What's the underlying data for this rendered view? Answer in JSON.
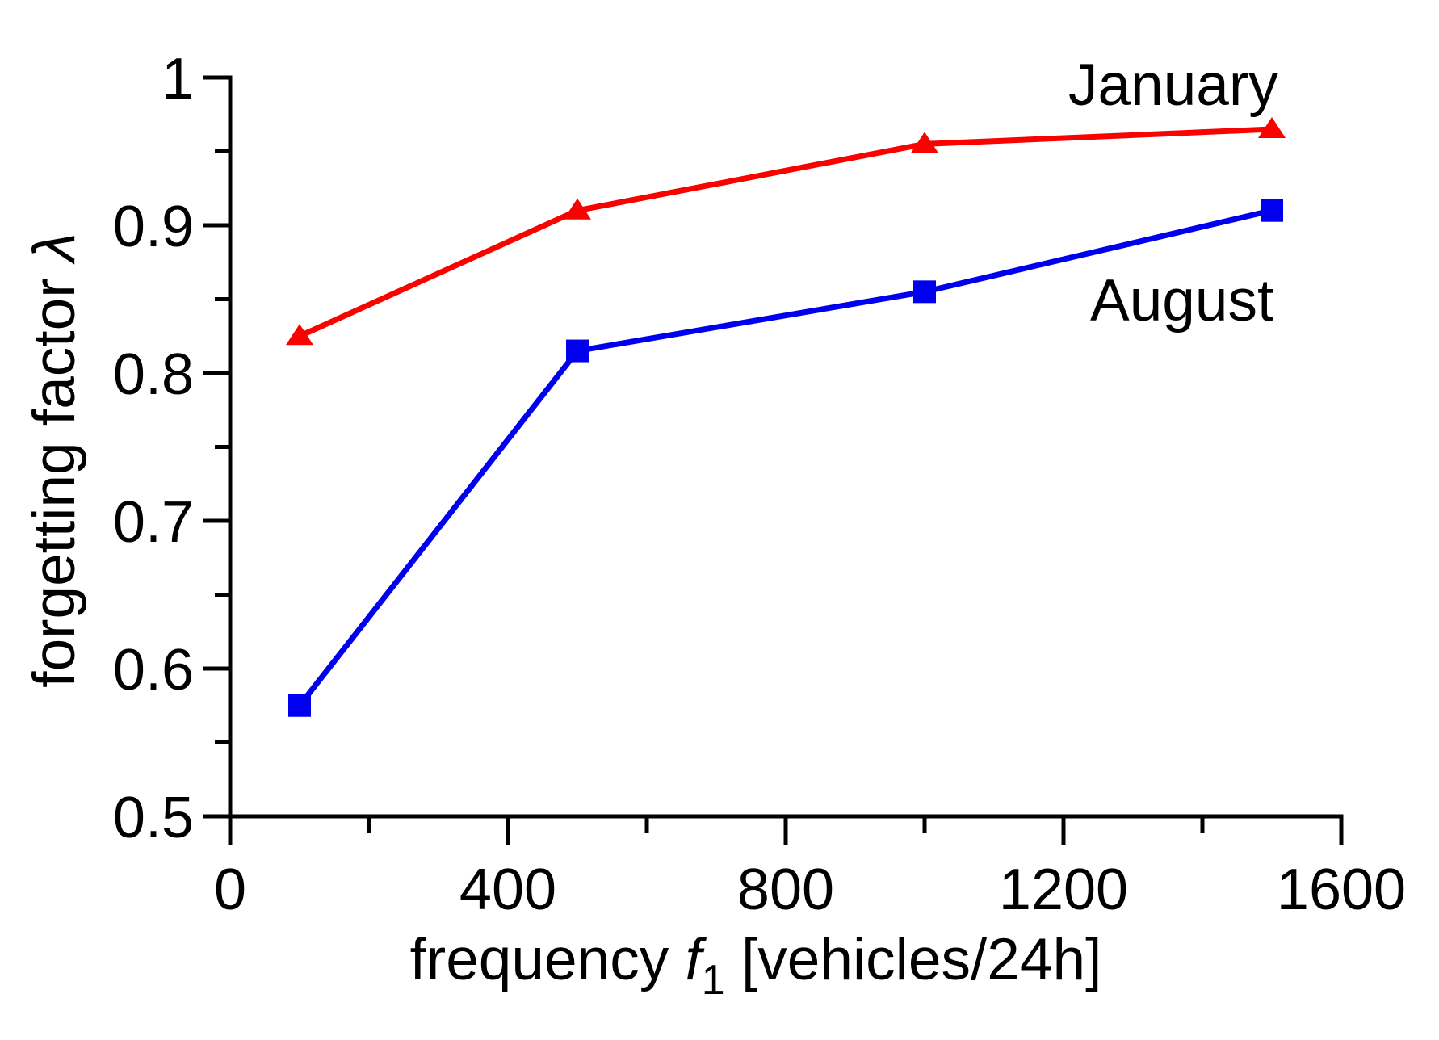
{
  "chart_data": {
    "type": "line",
    "title": "",
    "xlabel": "frequency f1 [vehicles/24h]",
    "xlabel_parts": {
      "prefix": "frequency ",
      "variable": "f",
      "subscript": "1",
      "suffix": " [vehicles/24h]"
    },
    "ylabel": "forgetting factor λ",
    "ylabel_parts": {
      "prefix": "forgetting factor ",
      "symbol": "λ"
    },
    "xlim": [
      0,
      1600
    ],
    "ylim": [
      0.5,
      1
    ],
    "x_major_ticks": [
      0,
      400,
      800,
      1200,
      1600
    ],
    "x_major_tick_labels": [
      "0",
      "400",
      "800",
      "1200",
      "1600"
    ],
    "x_minor_ticks": [
      200,
      600,
      1000,
      1400
    ],
    "y_major_ticks": [
      1,
      0.9,
      0.8,
      0.7,
      0.6,
      0.5
    ],
    "y_major_tick_labels": [
      "1",
      "0.9",
      "0.8",
      "0.7",
      "0.6",
      "0.5"
    ],
    "y_minor_ticks": [
      0.95,
      0.85,
      0.75,
      0.65,
      0.55
    ],
    "grid": false,
    "legend_position": "inline-annotations",
    "axis_color": "#000000",
    "text_color": "#000000",
    "x": [
      100,
      500,
      1000,
      1500
    ],
    "series": [
      {
        "name": "January",
        "color": "#f90300",
        "marker": "triangle-up",
        "values": [
          0.825,
          0.91,
          0.955,
          0.965
        ]
      },
      {
        "name": "August",
        "color": "#0000ee",
        "marker": "square",
        "values": [
          0.575,
          0.815,
          0.855,
          0.91
        ]
      }
    ]
  }
}
